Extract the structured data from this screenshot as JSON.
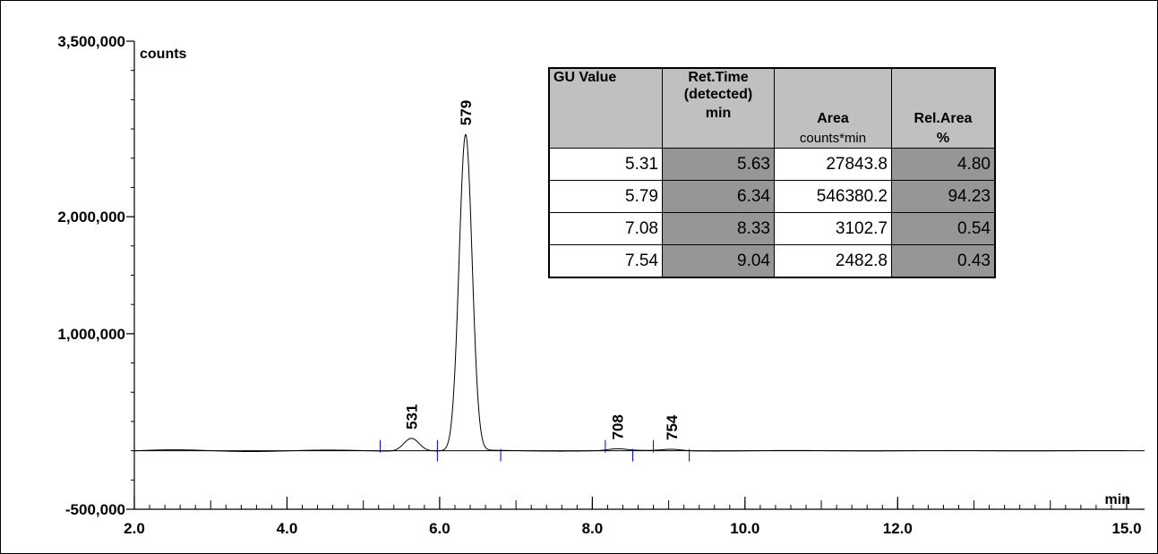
{
  "chart_data": {
    "type": "line",
    "ylabel": "counts",
    "xlabel": "min",
    "ylim": [
      -500000,
      3500000
    ],
    "xlim": [
      2.0,
      15.0
    ],
    "y_ticks_labeled": [
      "3,500,000",
      "2,000,000",
      "1,000,000",
      "-500,000"
    ],
    "y_tick_values": [
      3500000,
      2000000,
      1000000,
      -500000
    ],
    "x_ticks_labeled": [
      "2.0",
      "4.0",
      "6.0",
      "8.0",
      "10.0",
      "12.0",
      "15.0"
    ],
    "x_tick_values": [
      2.0,
      4.0,
      6.0,
      8.0,
      10.0,
      12.0,
      15.0
    ],
    "grid": false,
    "series": [
      {
        "peaks": [
          {
            "label": "531",
            "rt": 5.63,
            "height": 110000,
            "width": 0.1,
            "start": 5.22,
            "end": 5.97
          },
          {
            "label": "579",
            "rt": 6.34,
            "height": 2700000,
            "width": 0.085,
            "start": 5.97,
            "end": 6.8
          },
          {
            "label": "708",
            "rt": 8.33,
            "height": 15000,
            "width": 0.12,
            "start": 8.17,
            "end": 8.53
          },
          {
            "label": "754",
            "rt": 9.04,
            "height": 12000,
            "width": 0.12,
            "start": 8.8,
            "end": 9.27
          }
        ]
      }
    ]
  },
  "table": {
    "headers": [
      {
        "top": "GU Value",
        "bottom": "",
        "sub": ""
      },
      {
        "top": "Ret.Time (detected)",
        "bottom": "min",
        "sub": ""
      },
      {
        "top": "",
        "bottom": "Area",
        "sub": "counts*min"
      },
      {
        "top": "",
        "bottom": "Rel.Area",
        "sub": "%"
      }
    ],
    "rows": [
      [
        "5.31",
        "5.63",
        "27843.8",
        "4.80"
      ],
      [
        "5.79",
        "6.34",
        "546380.2",
        "94.23"
      ],
      [
        "7.08",
        "8.33",
        "3102.7",
        "0.54"
      ],
      [
        "7.54",
        "9.04",
        "2482.8",
        "0.43"
      ]
    ]
  }
}
